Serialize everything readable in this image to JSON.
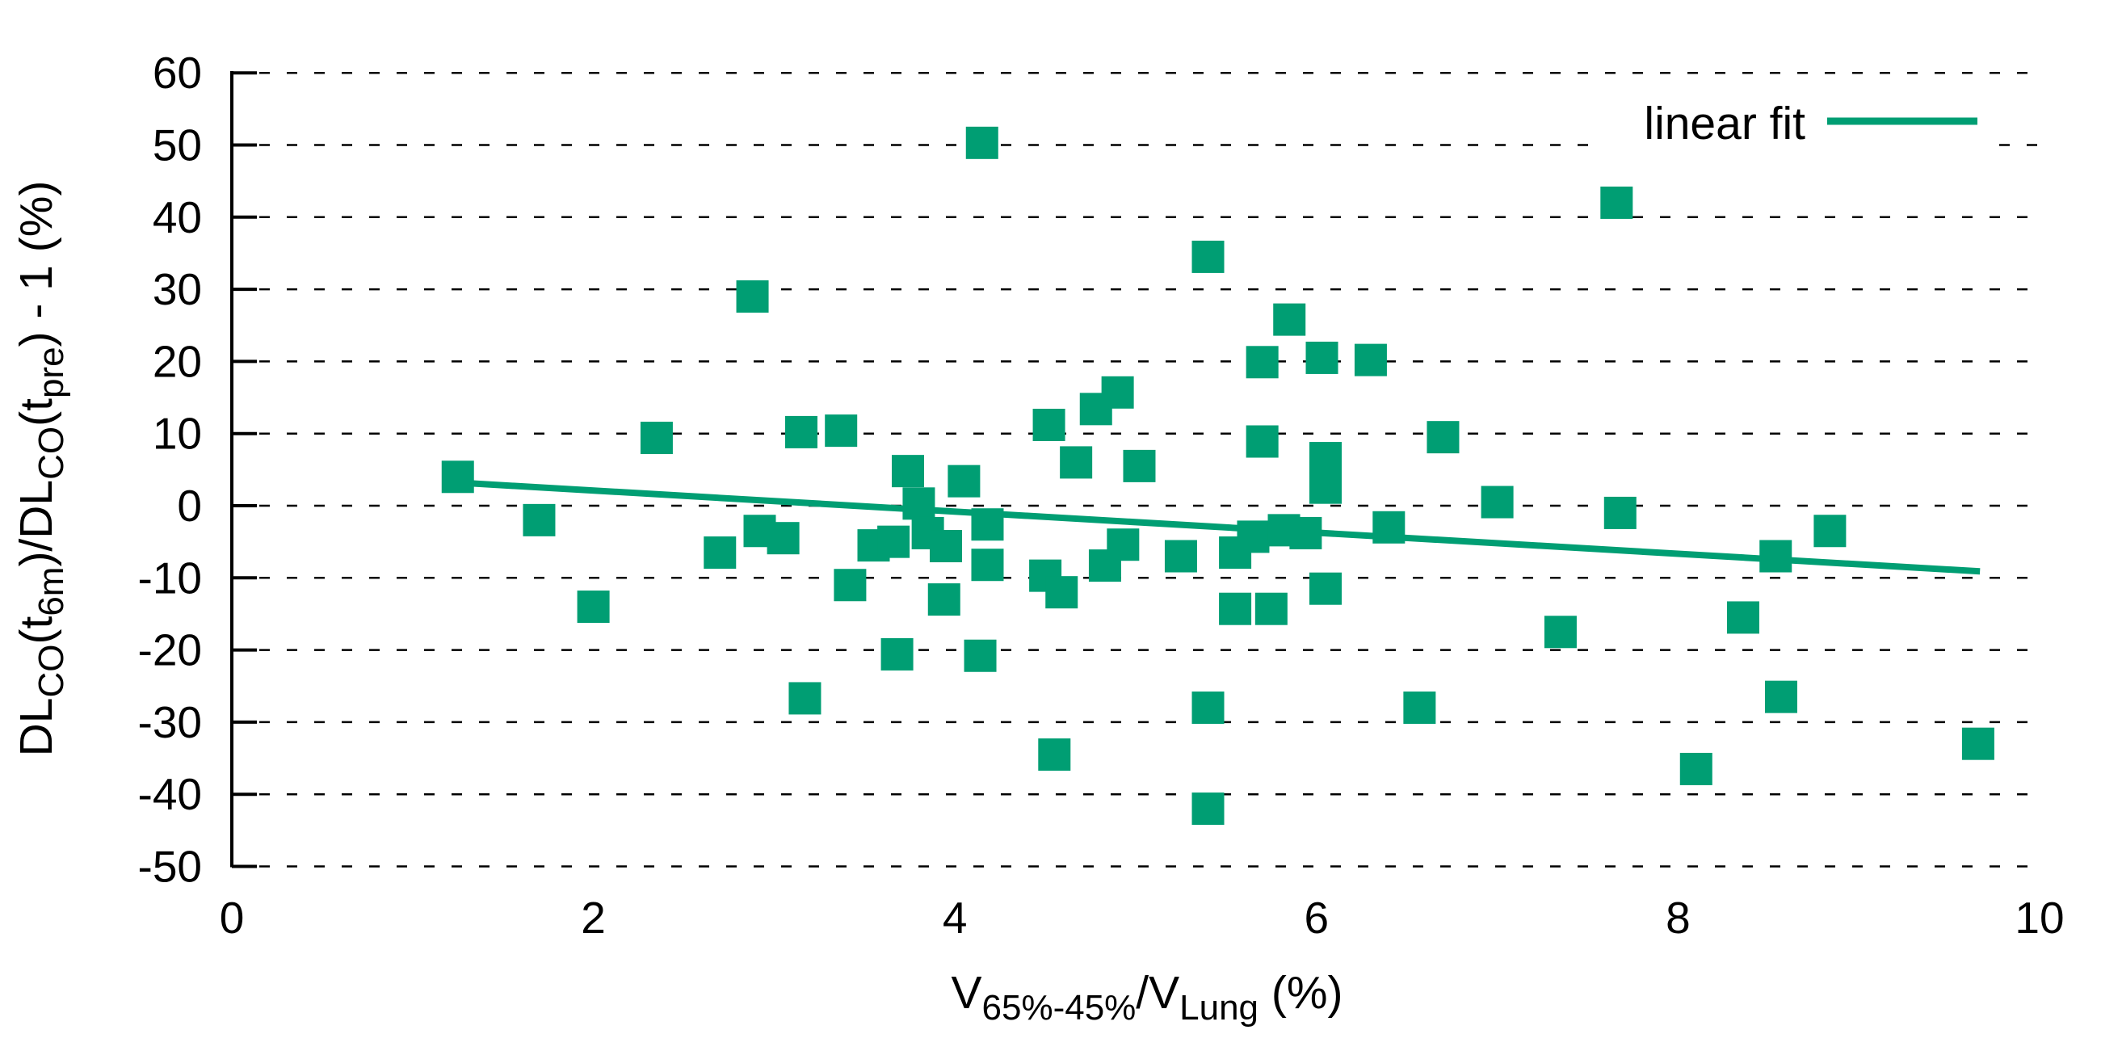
{
  "title": "",
  "colors": {
    "accent": "#009E73",
    "axis": "#000000",
    "background": "#FFFFFF"
  },
  "chart_data": {
    "type": "scatter",
    "title": "",
    "xlabel_segments": [
      {
        "t": "V"
      },
      {
        "t": "65%-45%",
        "sub": true
      },
      {
        "t": "/V"
      },
      {
        "t": "Lung",
        "sub": true
      },
      {
        "t": " (%)"
      }
    ],
    "ylabel_segments": [
      {
        "t": "DL"
      },
      {
        "t": "CO",
        "sub": true
      },
      {
        "t": "(t"
      },
      {
        "t": "6m",
        "sub": true
      },
      {
        "t": ")/DL"
      },
      {
        "t": "CO",
        "sub": true
      },
      {
        "t": "(t"
      },
      {
        "t": "pre",
        "sub": true
      },
      {
        "t": ") - 1 (%)"
      }
    ],
    "xlim": [
      0,
      10
    ],
    "ylim": [
      -50,
      60
    ],
    "x_ticks": [
      0,
      2,
      4,
      6,
      8,
      10
    ],
    "y_ticks": [
      60,
      50,
      40,
      30,
      20,
      10,
      0,
      -10,
      -20,
      -30,
      -40,
      -50
    ],
    "grid": "dashed-horizontal",
    "legend": {
      "label": "linear fit",
      "position": "top-right"
    },
    "marker": "square",
    "marker_color": "#009E73",
    "series": [
      {
        "name": "data",
        "points": [
          [
            1.25,
            4
          ],
          [
            1.7,
            -2
          ],
          [
            2.0,
            -14
          ],
          [
            2.35,
            9.4
          ],
          [
            2.7,
            -6.5
          ],
          [
            2.88,
            29
          ],
          [
            2.92,
            -3.5
          ],
          [
            3.05,
            -4.5
          ],
          [
            3.15,
            10.2
          ],
          [
            3.17,
            -26.7
          ],
          [
            3.37,
            10.4
          ],
          [
            3.42,
            -11
          ],
          [
            3.55,
            -5.5
          ],
          [
            3.66,
            -5
          ],
          [
            3.68,
            -20.6
          ],
          [
            3.74,
            4.8
          ],
          [
            3.8,
            0.3
          ],
          [
            3.85,
            -3.8
          ],
          [
            3.94,
            -13
          ],
          [
            3.95,
            -5.6
          ],
          [
            4.05,
            3.4
          ],
          [
            4.15,
            50.3
          ],
          [
            4.14,
            -20.8
          ],
          [
            4.18,
            -2.6
          ],
          [
            4.18,
            -8.2
          ],
          [
            4.5,
            -9.7
          ],
          [
            4.52,
            11.2
          ],
          [
            4.55,
            -34.5
          ],
          [
            4.59,
            -12
          ],
          [
            4.67,
            6
          ],
          [
            4.78,
            13.4
          ],
          [
            4.83,
            -8.3
          ],
          [
            4.9,
            15.7
          ],
          [
            4.93,
            -5.4
          ],
          [
            5.02,
            5.5
          ],
          [
            5.25,
            -7
          ],
          [
            5.4,
            34.5
          ],
          [
            5.4,
            -28
          ],
          [
            5.4,
            -42
          ],
          [
            5.55,
            -6.5
          ],
          [
            5.55,
            -14.3
          ],
          [
            5.65,
            -4.3
          ],
          [
            5.7,
            19.9
          ],
          [
            5.7,
            8.9
          ],
          [
            5.75,
            -14.3
          ],
          [
            5.82,
            -3.4
          ],
          [
            5.85,
            25.8
          ],
          [
            5.94,
            -3.8
          ],
          [
            6.03,
            20.5
          ],
          [
            6.05,
            6.6
          ],
          [
            6.05,
            2.5
          ],
          [
            6.05,
            -11.5
          ],
          [
            6.3,
            20.2
          ],
          [
            6.4,
            -3
          ],
          [
            6.57,
            -28
          ],
          [
            6.7,
            9.5
          ],
          [
            7.0,
            0.5
          ],
          [
            7.35,
            -17.5
          ],
          [
            7.66,
            42
          ],
          [
            7.68,
            -1
          ],
          [
            8.1,
            -36.5
          ],
          [
            8.36,
            -15.5
          ],
          [
            8.54,
            -7
          ],
          [
            8.57,
            -26.5
          ],
          [
            8.84,
            -3.5
          ],
          [
            9.66,
            -33
          ]
        ]
      }
    ],
    "fit_line": {
      "name": "linear fit",
      "x1": 1.25,
      "y1": 3.2,
      "x2": 9.67,
      "y2": -9.1
    }
  }
}
